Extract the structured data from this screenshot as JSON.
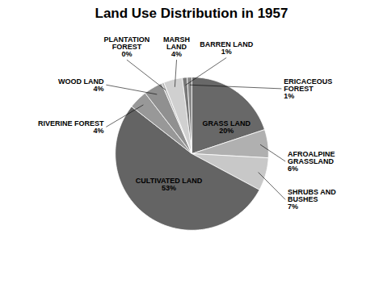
{
  "chart_data": {
    "type": "pie",
    "title": "Land Use Distribution in 1957",
    "categories": [
      "GRASS LAND",
      "AFROALPINE\nGRASSLAND",
      "SHRUBS AND\nBUSHES",
      "CULTIVATED LAND",
      "RIVERINE FOREST",
      "WOOD LAND",
      "PLANTATION\nFOREST",
      "MARSH\nLAND",
      "BARREN LAND",
      "ERICACEOUS\nFOREST"
    ],
    "values": [
      20,
      6,
      7,
      53,
      4,
      4,
      0.5,
      4,
      1,
      1
    ],
    "value_labels": [
      "20%",
      "6%",
      "7%",
      "53%",
      "4%",
      "4%",
      "0%",
      "4%",
      "1%",
      "1%"
    ],
    "colors": [
      "#686868",
      "#b0b0b0",
      "#c8c8c8",
      "#646464",
      "#989898",
      "#909090",
      "#b8b8b8",
      "#d0d0d0",
      "#787878",
      "#888888"
    ],
    "data_labels": true
  }
}
